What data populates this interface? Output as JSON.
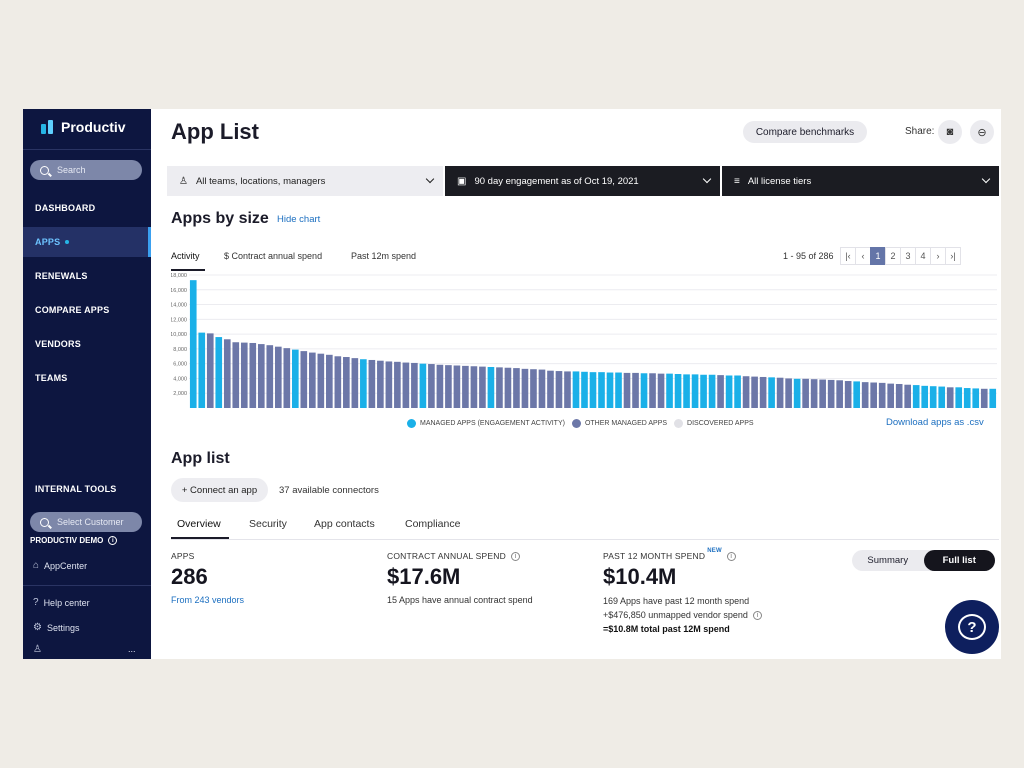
{
  "sidebar": {
    "brand": "Productiv",
    "search_placeholder": "Search",
    "nav": [
      {
        "label": "DASHBOARD",
        "active": false
      },
      {
        "label": "APPS",
        "active": true
      },
      {
        "label": "RENEWALS",
        "active": false
      },
      {
        "label": "COMPARE APPS",
        "active": false
      },
      {
        "label": "VENDORS",
        "active": false
      },
      {
        "label": "TEAMS",
        "active": false
      }
    ],
    "internal_tools": "INTERNAL TOOLS",
    "select_customer": "Select Customer",
    "customer_name": "PRODUCTIV DEMO",
    "appcenter": "AppCenter",
    "help_center": "Help center",
    "settings": "Settings",
    "more": "..."
  },
  "header": {
    "title": "App List",
    "compare_benchmarks": "Compare benchmarks",
    "share_label": "Share:"
  },
  "filters": {
    "teams": "All teams, locations, managers",
    "engagement": "90 day engagement as of Oct 19, 2021",
    "license": "All license tiers"
  },
  "apps_by_size": {
    "heading": "Apps by size",
    "hide_chart": "Hide chart",
    "tabs": [
      "Activity",
      "$ Contract annual spend",
      "Past 12m spend"
    ],
    "pager_text": "1 - 95 of 286",
    "pages": [
      "1",
      "2",
      "3",
      "4"
    ],
    "current_page": "1",
    "download": "Download apps as .csv"
  },
  "chart_data": {
    "type": "bar",
    "yticks": [
      "18,000",
      "16,000",
      "14,000",
      "12,000",
      "10,000",
      "8,000",
      "6,000",
      "4,000",
      "2,000"
    ],
    "ylim": [
      0,
      18000
    ],
    "legend": [
      {
        "name": "MANAGED APPS (ENGAGEMENT ACTIVITY)",
        "color": "#1ab0e8"
      },
      {
        "name": "OTHER MANAGED APPS",
        "color": "#6c77a8"
      },
      {
        "name": "DISCOVERED APPS",
        "color": "#e1e1e6"
      }
    ],
    "values": [
      17300,
      10200,
      10100,
      9600,
      9300,
      8900,
      8850,
      8800,
      8650,
      8500,
      8300,
      8100,
      7900,
      7700,
      7500,
      7350,
      7200,
      7000,
      6900,
      6750,
      6600,
      6500,
      6400,
      6300,
      6250,
      6150,
      6100,
      6000,
      5950,
      5850,
      5800,
      5750,
      5700,
      5650,
      5600,
      5550,
      5500,
      5450,
      5400,
      5300,
      5250,
      5200,
      5050,
      5000,
      4950,
      4950,
      4900,
      4850,
      4850,
      4800,
      4800,
      4750,
      4750,
      4700,
      4700,
      4650,
      4650,
      4600,
      4550,
      4550,
      4500,
      4500,
      4450,
      4400,
      4400,
      4300,
      4250,
      4200,
      4150,
      4100,
      4000,
      3950,
      3950,
      3900,
      3850,
      3800,
      3750,
      3650,
      3600,
      3500,
      3450,
      3400,
      3300,
      3250,
      3150,
      3100,
      3000,
      2950,
      2900,
      2800,
      2800,
      2700,
      2650,
      2600,
      2600
    ],
    "managed_flags": [
      1,
      1,
      0,
      1,
      0,
      0,
      0,
      0,
      0,
      0,
      0,
      0,
      1,
      0,
      0,
      0,
      0,
      0,
      0,
      0,
      1,
      0,
      0,
      0,
      0,
      0,
      0,
      1,
      0,
      0,
      0,
      0,
      0,
      0,
      0,
      1,
      0,
      0,
      0,
      0,
      0,
      0,
      0,
      0,
      0,
      1,
      1,
      1,
      1,
      1,
      1,
      0,
      0,
      1,
      0,
      0,
      1,
      1,
      1,
      1,
      1,
      1,
      0,
      1,
      1,
      0,
      0,
      0,
      1,
      0,
      0,
      1,
      0,
      0,
      0,
      0,
      0,
      0,
      1,
      0,
      0,
      0,
      0,
      0,
      0,
      1,
      1,
      1,
      1,
      0,
      1,
      1,
      1,
      0,
      1
    ]
  },
  "app_list": {
    "heading": "App list",
    "connect_button": "+ Connect an app",
    "connectors": "37 available connectors",
    "tabs": [
      "Overview",
      "Security",
      "App contacts",
      "Compliance"
    ],
    "stats": {
      "apps_label": "APPS",
      "apps_value": "286",
      "apps_link": "From 243 vendors",
      "contract_label": "CONTRACT ANNUAL SPEND",
      "contract_value": "$17.6M",
      "contract_sub": "15 Apps have annual contract spend",
      "past_label": "PAST 12 MONTH SPEND",
      "past_badge": "NEW",
      "past_value": "$10.4M",
      "past_sub1": "169 Apps have past 12 month spend",
      "past_sub2": "+$476,850 unmapped vendor spend",
      "past_sub3": "=$10.8M total past 12M spend"
    },
    "view_toggle": [
      "Summary",
      "Full list"
    ]
  },
  "help_fab": "?"
}
